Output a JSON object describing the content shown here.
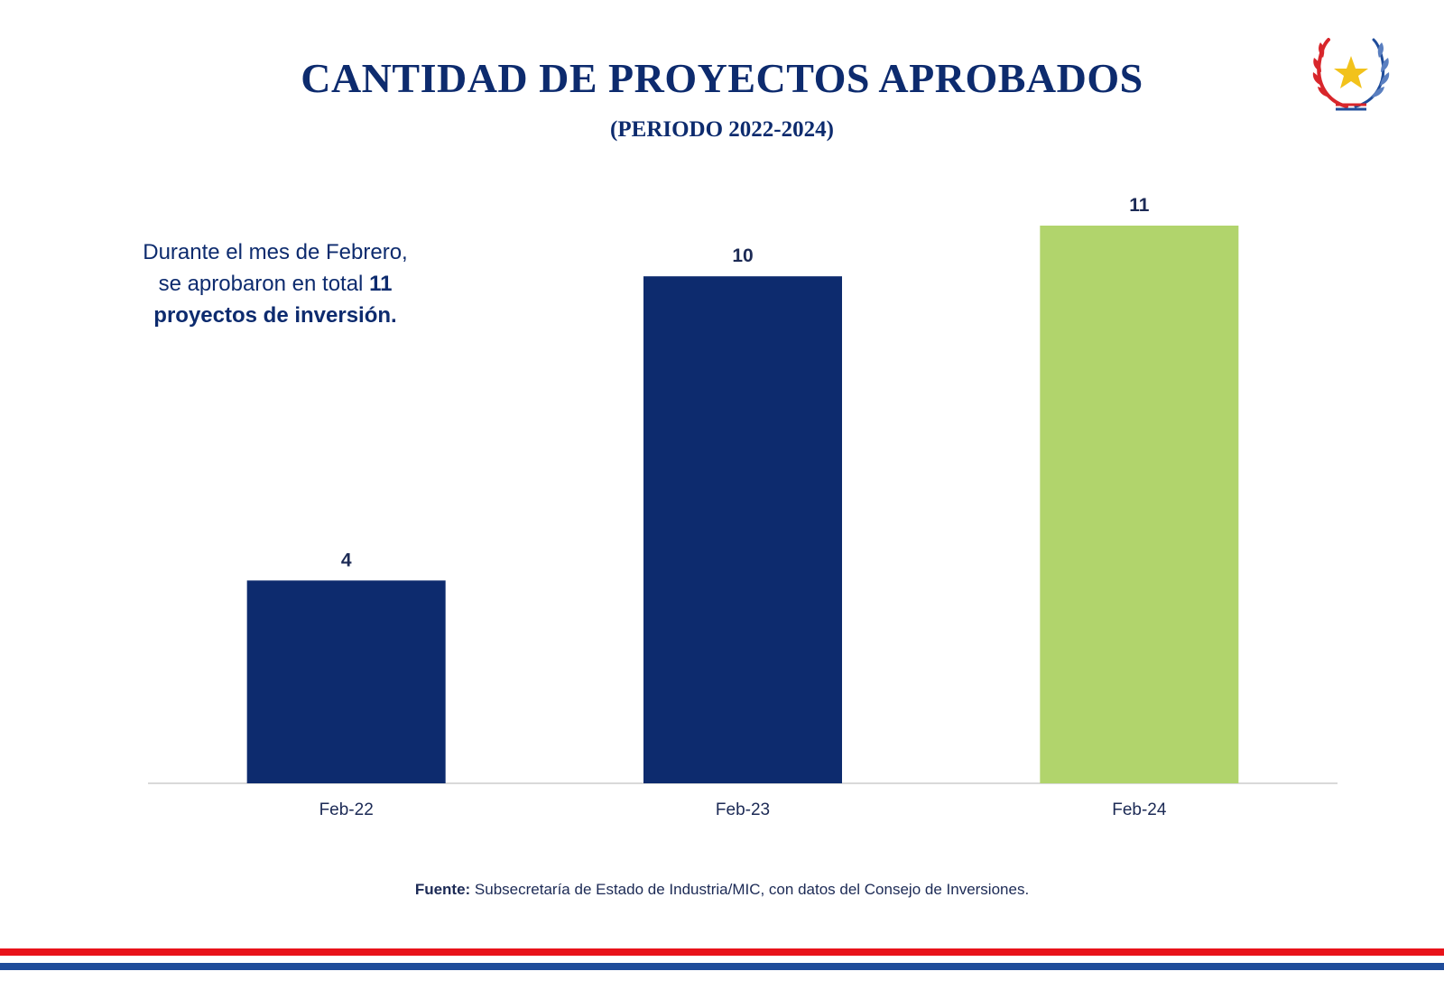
{
  "colors": {
    "navy": "#0d2b6e",
    "green": "#b1d46c",
    "red_stripe": "#e8131a",
    "blue_stripe": "#1f4c9a",
    "axis": "#d9d9d9",
    "text": "#1c2a55"
  },
  "logo": {
    "icon": "coat-of-arms-star-wreath-icon"
  },
  "chart_data": {
    "type": "bar",
    "title": "CANTIDAD DE PROYECTOS APROBADOS",
    "subtitle": "(PERIODO 2022-2024)",
    "categories": [
      "Feb-22",
      "Feb-23",
      "Feb-24"
    ],
    "values": [
      4,
      10,
      11
    ],
    "data_labels": [
      "4",
      "10",
      "11"
    ],
    "bar_colors": [
      "#0d2b6e",
      "#0d2b6e",
      "#b1d46c"
    ],
    "xlabel": "",
    "ylabel": "",
    "ylim": [
      0,
      11
    ],
    "grid": false,
    "legend": "none"
  },
  "note": {
    "line1": "Durante el mes de Febrero,",
    "line2_prefix": "se aprobaron en total ",
    "line2_bold": "11",
    "line3_bold": "proyectos de inversión."
  },
  "source": {
    "label": "Fuente:",
    "text": " Subsecretaría de Estado de Industria/MIC, con datos del Consejo de Inversiones."
  }
}
